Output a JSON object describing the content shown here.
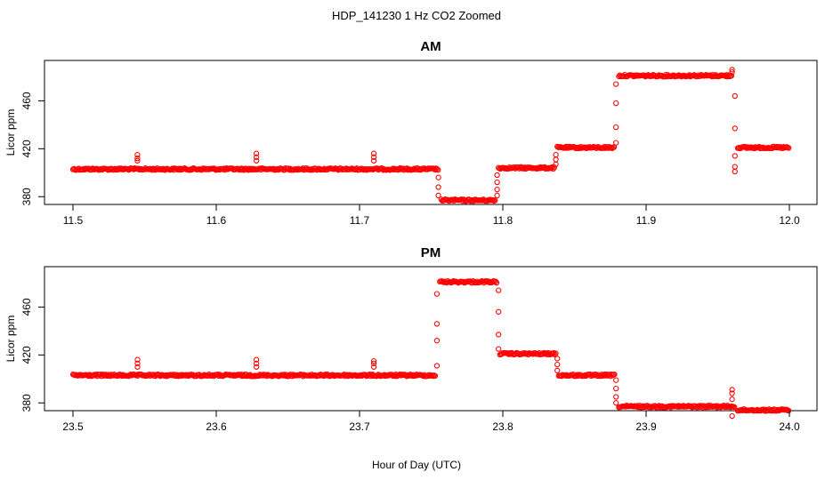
{
  "figure": {
    "title": "HDP_141230  1 Hz CO2 Zoomed",
    "xlabel": "Hour of Day (UTC)"
  },
  "chart_data": [
    {
      "type": "scatter",
      "title": "AM",
      "xlabel": "Hour of Day (UTC)",
      "ylabel": "Licor ppm",
      "xlim": [
        11.5,
        12.0
      ],
      "ylim": [
        375,
        490
      ],
      "xticks": [
        "11.5",
        "11.6",
        "11.7",
        "11.8",
        "11.9",
        "12.0"
      ],
      "yticks": [
        "380",
        "420",
        "460"
      ],
      "color": "#ff0000",
      "grid": false,
      "segments": [
        {
          "x_start": 11.5,
          "x_end": 11.755,
          "value": 403
        },
        {
          "x_start": 11.757,
          "x_end": 11.795,
          "value": 377
        },
        {
          "x_start": 11.797,
          "x_end": 11.836,
          "value": 404
        },
        {
          "x_start": 11.838,
          "x_end": 11.878,
          "value": 421
        },
        {
          "x_start": 11.881,
          "x_end": 11.96,
          "value": 481
        },
        {
          "x_start": 11.964,
          "x_end": 12.0,
          "value": 421
        }
      ],
      "transitions": [
        {
          "x": 11.755,
          "values": [
            396,
            388,
            381
          ]
        },
        {
          "x": 11.796,
          "values": [
            381,
            386,
            392,
            398
          ]
        },
        {
          "x": 11.837,
          "values": [
            407,
            411,
            415
          ]
        },
        {
          "x": 11.879,
          "values": [
            425,
            438,
            458,
            474
          ]
        },
        {
          "x": 11.962,
          "values": [
            464,
            437,
            414,
            405,
            401
          ]
        }
      ],
      "spikes": [
        {
          "x": 11.545,
          "values": [
            410,
            412,
            415
          ]
        },
        {
          "x": 11.628,
          "values": [
            410,
            413,
            416
          ]
        },
        {
          "x": 11.71,
          "values": [
            410,
            413,
            416
          ]
        },
        {
          "x": 11.96,
          "values": [
            484,
            486
          ]
        }
      ]
    },
    {
      "type": "scatter",
      "title": "PM",
      "xlabel": "Hour of Day (UTC)",
      "ylabel": "Licor ppm",
      "xlim": [
        23.5,
        24.0
      ],
      "ylim": [
        375,
        490
      ],
      "xticks": [
        "23.5",
        "23.6",
        "23.7",
        "23.8",
        "23.9",
        "24.0"
      ],
      "yticks": [
        "380",
        "420",
        "460"
      ],
      "color": "#ff0000",
      "grid": false,
      "segments": [
        {
          "x_start": 23.5,
          "x_end": 23.753,
          "value": 403
        },
        {
          "x_start": 23.756,
          "x_end": 23.796,
          "value": 481
        },
        {
          "x_start": 23.798,
          "x_end": 23.837,
          "value": 421
        },
        {
          "x_start": 23.839,
          "x_end": 23.878,
          "value": 403
        },
        {
          "x_start": 23.881,
          "x_end": 23.962,
          "value": 377
        },
        {
          "x_start": 23.964,
          "x_end": 24.0,
          "value": 374
        }
      ],
      "transitions": [
        {
          "x": 23.754,
          "values": [
            411,
            432,
            446,
            471
          ]
        },
        {
          "x": 23.797,
          "values": [
            474,
            456,
            437,
            425
          ]
        },
        {
          "x": 23.838,
          "values": [
            417,
            412,
            407
          ]
        },
        {
          "x": 23.879,
          "values": [
            399,
            392,
            385,
            380
          ]
        }
      ],
      "spikes": [
        {
          "x": 23.545,
          "values": [
            410,
            413,
            416
          ]
        },
        {
          "x": 23.628,
          "values": [
            410,
            413,
            416
          ]
        },
        {
          "x": 23.71,
          "values": [
            410,
            413,
            415
          ]
        },
        {
          "x": 23.96,
          "values": [
            369,
            383,
            388,
            391
          ]
        }
      ]
    }
  ]
}
